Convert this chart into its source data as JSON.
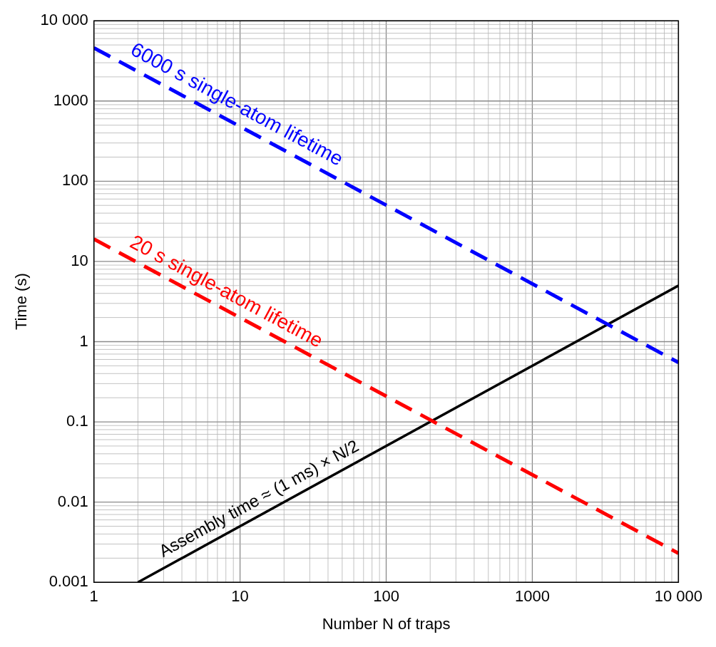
{
  "chart_data": {
    "type": "line",
    "xlabel": "Number N of traps",
    "ylabel": "Time (s)",
    "log": "xy",
    "grid": true,
    "legend": false,
    "marker": "none",
    "xlim": [
      1,
      10000
    ],
    "ylim": [
      0.001,
      10000
    ],
    "xticks": [
      1,
      10,
      100,
      1000,
      {
        "value": 10000,
        "label": "10 000"
      }
    ],
    "yticks": [
      0.001,
      0.01,
      0.1,
      1,
      10,
      100,
      1000,
      {
        "value": 10000,
        "label": "10 000"
      }
    ],
    "series": [
      {
        "name": "6000 s single-atom lifetime",
        "color": "#0000ff",
        "x": [
          1,
          10000
        ],
        "values": [
          4600,
          0.55
        ],
        "line_style": "dashed"
      },
      {
        "name": "20 s single-atom lifetime",
        "color": "#ff0000",
        "x": [
          1,
          10000
        ],
        "values": [
          19,
          0.0023
        ],
        "line_style": "dashed"
      },
      {
        "name": "Assembly time ≈ (1 ms) × N/2",
        "color": "#000000",
        "x": [
          2,
          10000
        ],
        "values": [
          0.001,
          5
        ],
        "line_style": "solid"
      }
    ]
  }
}
